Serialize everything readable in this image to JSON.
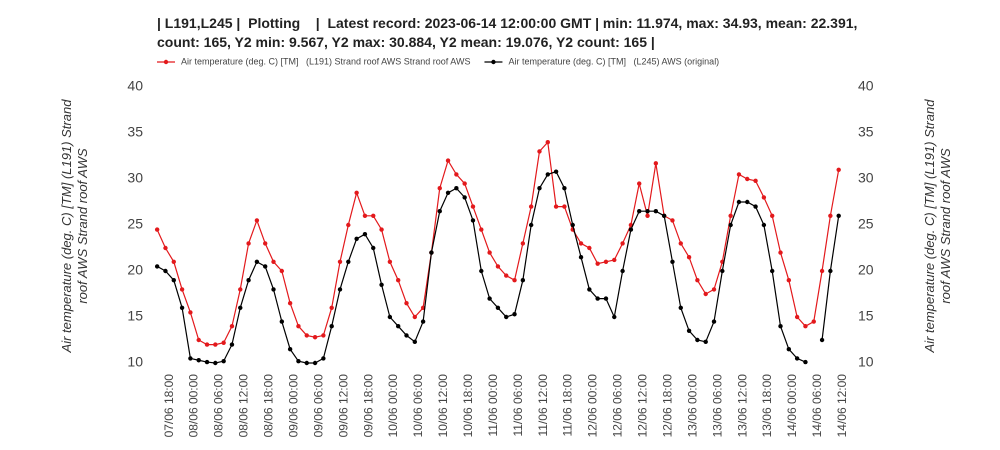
{
  "chart_data": {
    "type": "line",
    "title": "| L191,L245 |  Plotting    |  Latest record: 2023-06-14 12:00:00 GMT | min: 11.974, max: 34.93, mean: 22.391, count: 165, Y2 min: 9.567, Y2 max: 30.884, Y2 mean: 19.076, Y2 count: 165 |",
    "ylabel": "Air temperature (deg. C) [TM]   (L191) Strand roof AWS Strand roof AWS",
    "y2label": "Air temperature (deg. C) [TM]   (L191) Strand roof AWS Strand roof AWS",
    "x": [
      15,
      17,
      19,
      21,
      23,
      25,
      27,
      29,
      31,
      33,
      35,
      37,
      39,
      41,
      43,
      45,
      47,
      49,
      51,
      53,
      55,
      57,
      59,
      61,
      63,
      65,
      67,
      69,
      71,
      73,
      75,
      77,
      79,
      81,
      83,
      85,
      87,
      89,
      91,
      93,
      95,
      97,
      99,
      101,
      103,
      105,
      107,
      109,
      111,
      113,
      115,
      117,
      119,
      121,
      123,
      125,
      127,
      129,
      131,
      133,
      135,
      137,
      139,
      141,
      143,
      145,
      147,
      149,
      151,
      153,
      155,
      157,
      159,
      161,
      163,
      165,
      167,
      169,
      171,
      173,
      175,
      177,
      179
    ],
    "series": [
      {
        "name": "Air temperature (deg. C) [TM]   (L191) Strand roof AWS Strand roof AWS",
        "color": "#e3191c",
        "values": [
          24.5,
          22.5,
          21,
          18,
          15.5,
          12.5,
          12,
          12,
          12.2,
          14,
          18,
          23,
          25.5,
          23,
          21,
          20,
          16.5,
          14,
          13,
          12.8,
          13,
          16,
          21,
          25,
          28.5,
          26,
          26,
          24.5,
          21,
          19,
          16.5,
          15,
          16,
          22,
          29,
          32,
          30.5,
          29.5,
          27,
          24.5,
          22,
          20.5,
          19.5,
          19,
          23,
          27,
          33,
          34,
          27,
          27,
          24.5,
          23,
          22.5,
          20.8,
          21,
          21.2,
          23,
          25,
          29.5,
          26,
          31.7,
          26,
          25.5,
          23,
          21.5,
          19,
          17.5,
          18,
          21,
          26,
          30.5,
          30,
          29.8,
          28,
          26,
          22,
          19,
          15,
          14,
          14.5,
          20,
          26,
          31
        ]
      },
      {
        "name": "Air temperature (deg. C) [TM]   (L245) AWS (original)",
        "color": "#000000",
        "axis": "y2",
        "values": [
          20.5,
          20,
          19,
          16,
          10.5,
          10.3,
          10.1,
          10,
          10.2,
          12,
          16,
          19,
          21,
          20.5,
          18,
          14.5,
          11.5,
          10.2,
          10,
          10,
          10.5,
          14,
          18,
          21,
          23.5,
          24,
          22.5,
          18.5,
          15,
          14,
          13,
          12.3,
          14.5,
          22,
          26.5,
          28.5,
          29,
          28,
          25.5,
          20,
          17,
          16,
          15,
          15.3,
          19,
          25,
          29,
          30.5,
          30.8,
          29,
          25,
          21.5,
          18,
          17,
          17,
          15,
          20,
          24.5,
          26.5,
          26.5,
          26.5,
          26,
          21,
          16,
          13.5,
          12.5,
          12.3,
          14.5,
          20,
          25,
          27.5,
          27.5,
          27,
          25,
          20,
          14,
          11.5,
          10.5,
          10.1,
          null,
          12.5,
          20,
          26
        ]
      }
    ],
    "xlim": [
      14,
      181
    ],
    "xticks": [
      {
        "value": 18,
        "label": "07/06 18:00"
      },
      {
        "value": 24,
        "label": "08/06 00:00"
      },
      {
        "value": 30,
        "label": "08/06 06:00"
      },
      {
        "value": 36,
        "label": "08/06 12:00"
      },
      {
        "value": 42,
        "label": "08/06 18:00"
      },
      {
        "value": 48,
        "label": "09/06 00:00"
      },
      {
        "value": 54,
        "label": "09/06 06:00"
      },
      {
        "value": 60,
        "label": "09/06 12:00"
      },
      {
        "value": 66,
        "label": "09/06 18:00"
      },
      {
        "value": 72,
        "label": "10/06 00:00"
      },
      {
        "value": 78,
        "label": "10/06 06:00"
      },
      {
        "value": 84,
        "label": "10/06 12:00"
      },
      {
        "value": 90,
        "label": "10/06 18:00"
      },
      {
        "value": 96,
        "label": "11/06 00:00"
      },
      {
        "value": 102,
        "label": "11/06 06:00"
      },
      {
        "value": 108,
        "label": "11/06 12:00"
      },
      {
        "value": 114,
        "label": "11/06 18:00"
      },
      {
        "value": 120,
        "label": "12/06 00:00"
      },
      {
        "value": 126,
        "label": "12/06 06:00"
      },
      {
        "value": 132,
        "label": "12/06 12:00"
      },
      {
        "value": 138,
        "label": "12/06 18:00"
      },
      {
        "value": 144,
        "label": "13/06 00:00"
      },
      {
        "value": 150,
        "label": "13/06 06:00"
      },
      {
        "value": 156,
        "label": "13/06 12:00"
      },
      {
        "value": 162,
        "label": "13/06 18:00"
      },
      {
        "value": 168,
        "label": "14/06 00:00"
      },
      {
        "value": 174,
        "label": "14/06 06:00"
      },
      {
        "value": 180,
        "label": "14/06 12:00"
      }
    ],
    "ylim": [
      10,
      40
    ],
    "yticks": [
      10,
      15,
      20,
      25,
      30,
      35,
      40
    ],
    "y2lim": [
      10,
      40
    ],
    "y2ticks": [
      10,
      15,
      20,
      25,
      30,
      35,
      40
    ],
    "grid": false
  }
}
